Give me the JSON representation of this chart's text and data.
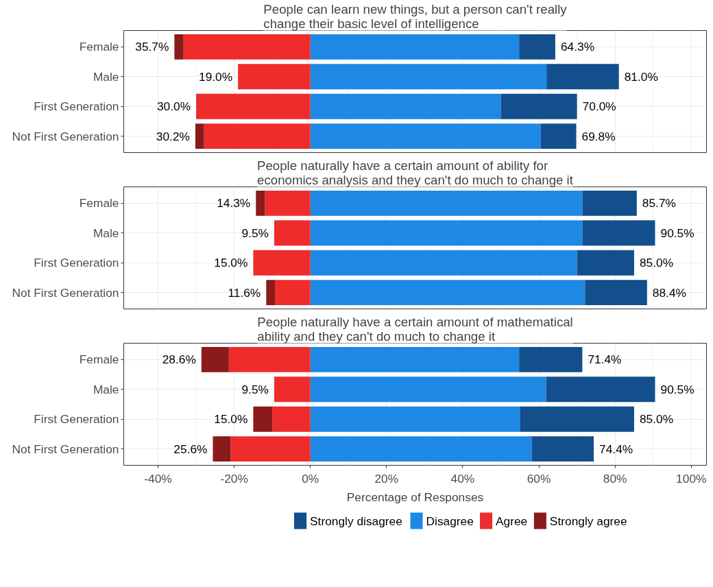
{
  "chart_data": [
    {
      "type": "bar",
      "orientation": "horizontal",
      "stacked": true,
      "title": "People can learn new things, but a person can't really change their basic level of intelligence",
      "categories": [
        "Female",
        "Male",
        "First Generation",
        "Not First Generation"
      ],
      "series": [
        {
          "color": "#1e88e5",
          "values": [
            54.8,
            62.0,
            50.0,
            60.5
          ]
        },
        {
          "color": "#134f8c",
          "values": [
            9.5,
            19.0,
            20.0,
            9.3
          ]
        },
        {
          "color": "#ee2c2c",
          "values": [
            -33.3,
            -19.0,
            -30.0,
            -27.9
          ]
        },
        {
          "color": "#8b1a1a",
          "values": [
            -2.4,
            0,
            0,
            -2.3
          ]
        }
      ],
      "annotations": [
        {
          "text": "35.7%",
          "x": -35.7,
          "y": "Female"
        },
        {
          "text": "64.3%",
          "x": 64.3,
          "y": "Female"
        },
        {
          "text": "19.0%",
          "x": -19.0,
          "y": "Male"
        },
        {
          "text": "81.0%",
          "x": 81.0,
          "y": "Male"
        },
        {
          "text": "30.0%",
          "x": -30.0,
          "y": "First Generation"
        },
        {
          "text": "70.0%",
          "x": 70.0,
          "y": "First Generation"
        },
        {
          "text": "30.2%",
          "x": -30.2,
          "y": "Not First Generation"
        },
        {
          "text": "69.8%",
          "x": 69.8,
          "y": "Not First Generation"
        }
      ],
      "xlim": [
        -49,
        104
      ],
      "xticks": [
        {
          "value": -40,
          "label": "-40%"
        },
        {
          "value": -20,
          "label": "-20%"
        },
        {
          "value": 0,
          "label": "0%"
        },
        {
          "value": 20,
          "label": "20%"
        },
        {
          "value": 40,
          "label": "40%"
        },
        {
          "value": 60,
          "label": "60%"
        },
        {
          "value": 80,
          "label": "80%"
        },
        {
          "value": 100,
          "label": "100%"
        }
      ],
      "tick_labels": "y",
      "grid": true
    },
    {
      "type": "bar",
      "orientation": "horizontal",
      "stacked": true,
      "title": "People naturally have a certain amount of ability for economics analysis and they can't do much to change it",
      "categories": [
        "Female",
        "Male",
        "First Generation",
        "Not First Generation"
      ],
      "series": [
        {
          "color": "#1e88e5",
          "values": [
            71.4,
            71.4,
            70.0,
            72.1
          ]
        },
        {
          "color": "#134f8c",
          "values": [
            14.3,
            19.1,
            15.0,
            16.3
          ]
        },
        {
          "color": "#ee2c2c",
          "values": [
            -11.9,
            -9.5,
            -15.0,
            -9.3
          ]
        },
        {
          "color": "#8b1a1a",
          "values": [
            -2.4,
            0,
            0,
            -2.3
          ]
        }
      ],
      "annotations": [
        {
          "text": "14.3%",
          "x": -14.3,
          "y": "Female"
        },
        {
          "text": "85.7%",
          "x": 85.7,
          "y": "Female"
        },
        {
          "text": "9.5%",
          "x": -9.5,
          "y": "Male"
        },
        {
          "text": "90.5%",
          "x": 90.5,
          "y": "Male"
        },
        {
          "text": "15.0%",
          "x": -15.0,
          "y": "First Generation"
        },
        {
          "text": "85.0%",
          "x": 85.0,
          "y": "First Generation"
        },
        {
          "text": "11.6%",
          "x": -11.6,
          "y": "Not First Generation"
        },
        {
          "text": "88.4%",
          "x": 88.4,
          "y": "Not First Generation"
        }
      ],
      "xlim": [
        -49,
        104
      ],
      "xticks": [
        {
          "value": -40,
          "label": "-40%"
        },
        {
          "value": -20,
          "label": "-20%"
        },
        {
          "value": 0,
          "label": "0%"
        },
        {
          "value": 20,
          "label": "20%"
        },
        {
          "value": 40,
          "label": "40%"
        },
        {
          "value": 60,
          "label": "60%"
        },
        {
          "value": 80,
          "label": "80%"
        },
        {
          "value": 100,
          "label": "100%"
        }
      ],
      "tick_labels": "y",
      "grid": true
    },
    {
      "type": "bar",
      "orientation": "horizontal",
      "stacked": true,
      "title": "People naturally have a certain amount of mathematical ability and they can't do much to change it",
      "xlabel": "Percentage of Responses",
      "categories": [
        "Female",
        "Male",
        "First Generation",
        "Not First Generation"
      ],
      "series": [
        {
          "name": "Disagree",
          "color": "#1e88e5",
          "values": [
            54.8,
            61.9,
            55.0,
            58.1
          ]
        },
        {
          "name": "Strongly disagree",
          "color": "#134f8c",
          "values": [
            16.6,
            28.6,
            30.0,
            16.3
          ]
        },
        {
          "name": "Agree",
          "color": "#ee2c2c",
          "values": [
            -21.4,
            -9.5,
            -10.0,
            -20.9
          ]
        },
        {
          "name": "Strongly agree",
          "color": "#8b1a1a",
          "values": [
            -7.2,
            0,
            -5.0,
            -4.7
          ]
        }
      ],
      "annotations": [
        {
          "text": "28.6%",
          "x": -28.6,
          "y": "Female"
        },
        {
          "text": "71.4%",
          "x": 71.4,
          "y": "Female"
        },
        {
          "text": "9.5%",
          "x": -9.5,
          "y": "Male"
        },
        {
          "text": "90.5%",
          "x": 90.5,
          "y": "Male"
        },
        {
          "text": "15.0%",
          "x": -15.0,
          "y": "First Generation"
        },
        {
          "text": "85.0%",
          "x": 85.0,
          "y": "First Generation"
        },
        {
          "text": "25.6%",
          "x": -25.6,
          "y": "Not First Generation"
        },
        {
          "text": "74.4%",
          "x": 74.4,
          "y": "Not First Generation"
        }
      ],
      "xlim": [
        -49,
        104
      ],
      "xticks": [
        {
          "value": -40,
          "label": "-40%"
        },
        {
          "value": -20,
          "label": "-20%"
        },
        {
          "value": 0,
          "label": "0%"
        },
        {
          "value": 20,
          "label": "20%"
        },
        {
          "value": 40,
          "label": "40%"
        },
        {
          "value": 60,
          "label": "60%"
        },
        {
          "value": 80,
          "label": "80%"
        },
        {
          "value": 100,
          "label": "100%"
        }
      ],
      "grid": true,
      "legend": "bottom"
    }
  ]
}
